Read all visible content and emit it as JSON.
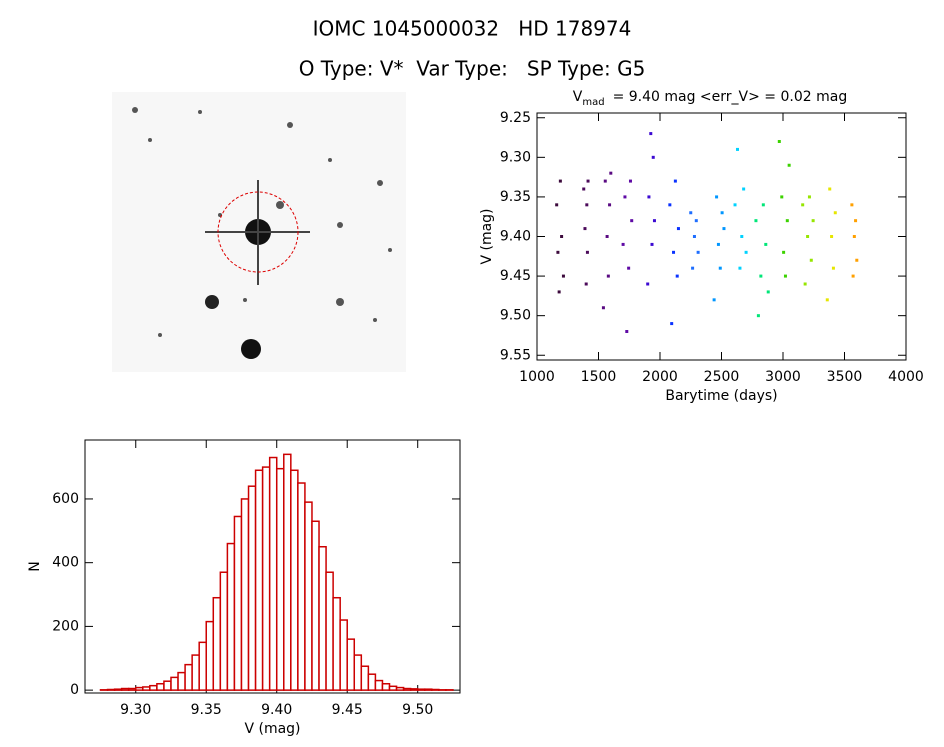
{
  "header": {
    "title": "IOMC 1045000032   HD 178974",
    "subtitle": "O Type: V*  Var Type:   SP Type: G5"
  },
  "chart_data": [
    {
      "type": "scatter",
      "title": {
        "text": "V",
        "sub": "mad",
        "rest": "= 9.40 mag <err_V> = 0.02 mag"
      },
      "x_label": "Barytime (days)",
      "y_label": "V (mag)",
      "xlim": [
        1000,
        4000
      ],
      "xticks": [
        1000,
        1500,
        2000,
        2500,
        3000,
        3500,
        4000
      ],
      "ylim": [
        9.244,
        9.556
      ],
      "y_inverted": true,
      "yticks": [
        {
          "value": 9.25,
          "label": "9.25"
        },
        {
          "value": 9.3,
          "label": "9.30"
        },
        {
          "value": 9.35,
          "label": "9.35"
        },
        {
          "value": 9.4,
          "label": "9.40"
        },
        {
          "value": 9.45,
          "label": "9.45"
        },
        {
          "value": 9.5,
          "label": "9.50"
        },
        {
          "value": 9.55,
          "label": "9.55"
        }
      ],
      "series": [
        {
          "color": "#3c0a3c",
          "x": [
            1160,
            1170,
            1180,
            1190,
            1200,
            1215
          ],
          "values": [
            9.36,
            9.42,
            9.47,
            9.33,
            9.4,
            9.45
          ]
        },
        {
          "color": "#4b0a5a",
          "x": [
            1380,
            1390,
            1400,
            1405,
            1410,
            1415
          ],
          "values": [
            9.34,
            9.39,
            9.46,
            9.36,
            9.42,
            9.33
          ]
        },
        {
          "color": "#5a0a82",
          "x": [
            1540,
            1555,
            1570,
            1580,
            1590,
            1600
          ],
          "values": [
            9.49,
            9.33,
            9.4,
            9.45,
            9.36,
            9.32
          ]
        },
        {
          "color": "#5f0aa5",
          "x": [
            1700,
            1715,
            1730,
            1745,
            1760,
            1770
          ],
          "values": [
            9.41,
            9.35,
            9.52,
            9.44,
            9.33,
            9.38
          ]
        },
        {
          "color": "#3c0ad2",
          "x": [
            1900,
            1910,
            1925,
            1935,
            1945,
            1955
          ],
          "values": [
            9.46,
            9.35,
            9.27,
            9.41,
            9.3,
            9.38
          ]
        },
        {
          "color": "#0a32ff",
          "x": [
            2080,
            2095,
            2110,
            2125,
            2140,
            2150
          ],
          "values": [
            9.36,
            9.51,
            9.42,
            9.33,
            9.45,
            9.39
          ]
        },
        {
          "color": "#1e6eff",
          "x": [
            2250,
            2265,
            2280,
            2295,
            2310
          ],
          "values": [
            9.37,
            9.44,
            9.4,
            9.38,
            9.42
          ]
        },
        {
          "color": "#0096ff",
          "x": [
            2440,
            2460,
            2475,
            2490,
            2505,
            2520
          ],
          "values": [
            9.48,
            9.35,
            9.41,
            9.44,
            9.37,
            9.39
          ]
        },
        {
          "color": "#00d2ff",
          "x": [
            2610,
            2630,
            2650,
            2665,
            2680,
            2700
          ],
          "values": [
            9.36,
            9.29,
            9.44,
            9.4,
            9.34,
            9.42
          ]
        },
        {
          "color": "#00e678",
          "x": [
            2780,
            2800,
            2820,
            2840,
            2860,
            2880
          ],
          "values": [
            9.38,
            9.5,
            9.45,
            9.36,
            9.41,
            9.47
          ]
        },
        {
          "color": "#3cd200",
          "x": [
            2970,
            2990,
            3005,
            3020,
            3035,
            3050
          ],
          "values": [
            9.28,
            9.35,
            9.42,
            9.45,
            9.38,
            9.31
          ]
        },
        {
          "color": "#96e600",
          "x": [
            3160,
            3180,
            3200,
            3215,
            3230,
            3245
          ],
          "values": [
            9.36,
            9.46,
            9.4,
            9.35,
            9.43,
            9.38
          ]
        },
        {
          "color": "#e6e600",
          "x": [
            3360,
            3380,
            3395,
            3410,
            3425
          ],
          "values": [
            9.48,
            9.34,
            9.4,
            9.44,
            9.37
          ]
        },
        {
          "color": "#ffa000",
          "x": [
            3560,
            3570,
            3580,
            3590,
            3600
          ],
          "values": [
            9.36,
            9.45,
            9.4,
            9.38,
            9.43
          ]
        }
      ]
    },
    {
      "type": "histogram",
      "color": "#cc0000",
      "x_label": "V (mag)",
      "y_label": "N",
      "xlim": [
        9.264,
        9.53
      ],
      "xticks": [
        {
          "value": 9.3,
          "label": "9.30"
        },
        {
          "value": 9.35,
          "label": "9.35"
        },
        {
          "value": 9.4,
          "label": "9.40"
        },
        {
          "value": 9.45,
          "label": "9.45"
        },
        {
          "value": 9.5,
          "label": "9.50"
        }
      ],
      "ylim": [
        -9,
        785
      ],
      "yticks": [
        0,
        200,
        400,
        600
      ],
      "bins": [
        9.275,
        9.28,
        9.285,
        9.29,
        9.295,
        9.3,
        9.305,
        9.31,
        9.315,
        9.32,
        9.325,
        9.33,
        9.335,
        9.34,
        9.345,
        9.35,
        9.355,
        9.36,
        9.365,
        9.37,
        9.375,
        9.38,
        9.385,
        9.39,
        9.395,
        9.4,
        9.405,
        9.41,
        9.415,
        9.42,
        9.425,
        9.43,
        9.435,
        9.44,
        9.445,
        9.45,
        9.455,
        9.46,
        9.465,
        9.47,
        9.475,
        9.48,
        9.485,
        9.49,
        9.495,
        9.5,
        9.505,
        9.51,
        9.515,
        9.52,
        9.525
      ],
      "values": [
        1,
        2,
        3,
        5,
        5,
        8,
        10,
        14,
        20,
        28,
        40,
        55,
        80,
        110,
        150,
        215,
        290,
        370,
        460,
        545,
        600,
        640,
        690,
        700,
        730,
        695,
        740,
        690,
        650,
        590,
        530,
        450,
        370,
        290,
        220,
        160,
        110,
        75,
        50,
        30,
        20,
        12,
        8,
        5,
        4,
        3,
        3,
        2,
        1,
        1
      ]
    }
  ]
}
